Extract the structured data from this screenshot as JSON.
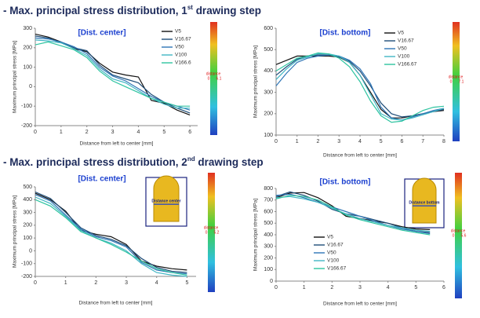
{
  "headings": [
    {
      "text": "- Max. principal stress distribution, 1",
      "sup": "st",
      "rest": " drawing step"
    },
    {
      "text": "- Max. principal stress distribution, 2",
      "sup": "nd",
      "rest": " drawing step"
    }
  ],
  "chart_data": [
    {
      "type": "line",
      "annotation": "[Dist. center]",
      "x_label": "Distance from left to center [mm]",
      "y_label": "Maximum principal stress [MPa]",
      "xlim": [
        0,
        6.3
      ],
      "xticks": [
        0,
        1,
        2,
        3,
        4,
        5,
        6
      ],
      "ylim": [
        -200,
        300
      ],
      "yticks": [
        -200,
        -100,
        0,
        100,
        200,
        300
      ],
      "grid": false,
      "colorbar": {
        "label": "distance",
        "min": 0,
        "max": 6.1
      },
      "x": [
        0,
        0.5,
        1,
        1.5,
        2,
        2.5,
        3,
        3.5,
        4,
        4.5,
        5,
        5.5,
        6
      ],
      "series": [
        {
          "name": "V5",
          "color": "#111111",
          "values": [
            270,
            255,
            230,
            195,
            180,
            120,
            75,
            60,
            50,
            -70,
            -85,
            -120,
            -145
          ]
        },
        {
          "name": "V16.67",
          "color": "#1f4e79",
          "values": [
            260,
            250,
            225,
            200,
            185,
            110,
            60,
            40,
            20,
            -40,
            -80,
            -110,
            -135
          ]
        },
        {
          "name": "V50",
          "color": "#2e75b6",
          "values": [
            250,
            245,
            230,
            205,
            170,
            100,
            55,
            30,
            -10,
            -50,
            -80,
            -100,
            -120
          ]
        },
        {
          "name": "V100",
          "color": "#41b6c4",
          "values": [
            240,
            235,
            225,
            195,
            160,
            90,
            40,
            20,
            -20,
            -60,
            -90,
            -110,
            -110
          ]
        },
        {
          "name": "V166.6",
          "color": "#2ec4a0",
          "values": [
            215,
            230,
            210,
            190,
            150,
            80,
            30,
            0,
            -30,
            -60,
            -80,
            -100,
            -100
          ]
        }
      ]
    },
    {
      "type": "line",
      "annotation": "[Dist. bottom]",
      "x_label": "Distance from left to center [mm]",
      "y_label": "Maximum principal stress [MPa]",
      "xlim": [
        0,
        8
      ],
      "xticks": [
        0,
        1,
        2,
        3,
        4,
        5,
        6,
        7,
        8
      ],
      "ylim": [
        100,
        600
      ],
      "yticks": [
        100,
        200,
        300,
        400,
        500,
        600
      ],
      "grid": false,
      "colorbar": {
        "label": "distance",
        "min": 0,
        "max": 7.1
      },
      "x": [
        0,
        0.5,
        1,
        1.5,
        2,
        2.5,
        3,
        3.5,
        4,
        4.5,
        5,
        5.5,
        6,
        6.5,
        7,
        7.5,
        8
      ],
      "series": [
        {
          "name": "V5",
          "color": "#111111",
          "values": [
            430,
            450,
            470,
            470,
            470,
            470,
            465,
            440,
            380,
            300,
            220,
            180,
            180,
            190,
            200,
            210,
            215
          ]
        },
        {
          "name": "V16.67",
          "color": "#1f4e79",
          "values": [
            380,
            420,
            455,
            470,
            475,
            475,
            465,
            445,
            400,
            330,
            250,
            200,
            185,
            190,
            200,
            210,
            220
          ]
        },
        {
          "name": "V50",
          "color": "#2e75b6",
          "values": [
            330,
            390,
            440,
            460,
            470,
            475,
            470,
            450,
            410,
            340,
            230,
            180,
            170,
            185,
            200,
            215,
            225
          ]
        },
        {
          "name": "V100",
          "color": "#41b6c4",
          "values": [
            360,
            410,
            450,
            465,
            480,
            480,
            470,
            440,
            380,
            290,
            200,
            175,
            170,
            180,
            195,
            210,
            225
          ]
        },
        {
          "name": "V166.67",
          "color": "#2ec4a0",
          "values": [
            400,
            430,
            460,
            470,
            485,
            480,
            460,
            420,
            350,
            260,
            190,
            160,
            165,
            190,
            215,
            230,
            235
          ]
        }
      ]
    },
    {
      "type": "line",
      "annotation": "[Dist. center]",
      "x_label": "Distance from left to center [mm]",
      "y_label": "Maximum principal stress [MPa]",
      "xlim": [
        0,
        5.3
      ],
      "xticks": [
        0,
        1,
        2,
        3,
        4,
        5
      ],
      "ylim": [
        -200,
        500
      ],
      "yticks": [
        -200,
        -100,
        0,
        100,
        200,
        300,
        400,
        500
      ],
      "grid": false,
      "colorbar": {
        "label": "distance",
        "min": 0,
        "max": 5.2
      },
      "inset": "Distance center",
      "x": [
        0,
        0.5,
        1,
        1.5,
        2,
        2.5,
        3,
        3.5,
        4,
        4.5,
        5
      ],
      "series": [
        {
          "color": "#111111",
          "values": [
            450,
            400,
            310,
            160,
            130,
            110,
            50,
            -80,
            -120,
            -140,
            -150
          ]
        },
        {
          "color": "#1f4e79",
          "values": [
            460,
            410,
            300,
            180,
            120,
            90,
            40,
            -60,
            -130,
            -160,
            -170
          ]
        },
        {
          "color": "#2e75b6",
          "values": [
            440,
            390,
            280,
            170,
            110,
            80,
            30,
            -90,
            -150,
            -170,
            -180
          ]
        },
        {
          "color": "#41b6c4",
          "values": [
            420,
            370,
            270,
            160,
            100,
            60,
            0,
            -100,
            -170,
            -190,
            -200
          ]
        },
        {
          "color": "#2ec4a0",
          "values": [
            400,
            350,
            260,
            150,
            100,
            50,
            -10,
            -80,
            -140,
            -170,
            -190
          ]
        }
      ]
    },
    {
      "type": "line",
      "annotation": "[Dist. bottom]",
      "x_label": "Distance from left to center [mm]",
      "y_label": "Maximum principal stress [MPa]",
      "xlim": [
        0,
        6
      ],
      "xticks": [
        0,
        1,
        2,
        3,
        4,
        5,
        6
      ],
      "ylim": [
        0,
        800
      ],
      "yticks": [
        0,
        100,
        200,
        300,
        400,
        500,
        600,
        700,
        800
      ],
      "grid": false,
      "colorbar": {
        "label": "distance",
        "min": 0,
        "max": 5.6
      },
      "inset": "Distance bottom",
      "x": [
        0,
        0.5,
        1,
        1.5,
        2,
        2.5,
        3,
        3.5,
        4,
        4.5,
        5,
        5.5
      ],
      "series": [
        {
          "name": "V5",
          "color": "#111111",
          "values": [
            720,
            760,
            765,
            720,
            650,
            560,
            540,
            520,
            500,
            470,
            450,
            445
          ]
        },
        {
          "name": "V16.67",
          "color": "#1f4e79",
          "values": [
            730,
            770,
            740,
            690,
            620,
            580,
            560,
            530,
            500,
            460,
            430,
            420
          ]
        },
        {
          "name": "V50",
          "color": "#2e75b6",
          "values": [
            740,
            750,
            720,
            680,
            640,
            600,
            560,
            520,
            480,
            450,
            430,
            410
          ]
        },
        {
          "name": "V100",
          "color": "#41b6c4",
          "values": [
            720,
            730,
            710,
            680,
            630,
            580,
            540,
            510,
            480,
            460,
            440,
            430
          ]
        },
        {
          "name": "V166.67",
          "color": "#2ec4a0",
          "values": [
            710,
            740,
            730,
            700,
            640,
            570,
            530,
            500,
            470,
            440,
            420,
            400
          ]
        }
      ]
    }
  ]
}
